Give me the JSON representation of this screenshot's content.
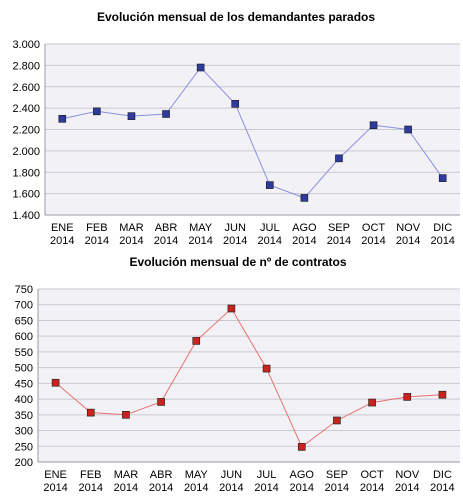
{
  "chart_data": [
    {
      "type": "line",
      "title": "Evolución mensual de los demandantes parados",
      "categories": [
        "ENE 2014",
        "FEB 2014",
        "MAR 2014",
        "ABR 2014",
        "MAY 2014",
        "JUN 2014",
        "JUL 2014",
        "AGO 2014",
        "SEP 2014",
        "OCT 2014",
        "NOV 2014",
        "DIC 2014"
      ],
      "category_lines": [
        [
          "ENE",
          "2014"
        ],
        [
          "FEB",
          "2014"
        ],
        [
          "MAR",
          "2014"
        ],
        [
          "ABR",
          "2014"
        ],
        [
          "MAY",
          "2014"
        ],
        [
          "JUN",
          "2014"
        ],
        [
          "JUL",
          "2014"
        ],
        [
          "AGO",
          "2014"
        ],
        [
          "SEP",
          "2014"
        ],
        [
          "OCT",
          "2014"
        ],
        [
          "NOV",
          "2014"
        ],
        [
          "DIC",
          "2014"
        ]
      ],
      "series": [
        {
          "values": [
            2300,
            2370,
            2325,
            2345,
            2780,
            2440,
            1680,
            1560,
            1930,
            2240,
            2200,
            1745
          ],
          "color": "#2e3a9e",
          "line_color": "#8a90e0"
        }
      ],
      "ylim": [
        1400,
        3000
      ],
      "yticks": [
        1400,
        1600,
        1800,
        2000,
        2200,
        2400,
        2600,
        2800,
        3000
      ],
      "ytick_labels": [
        "1.400",
        "1.600",
        "1.800",
        "2.000",
        "2.200",
        "2.400",
        "2.600",
        "2.800",
        "3.000"
      ],
      "grid": true,
      "xlabel": "",
      "ylabel": ""
    },
    {
      "type": "line",
      "title": "Evolución mensual de nº de contratos",
      "categories": [
        "ENE 2014",
        "FEB 2014",
        "MAR 2014",
        "ABR 2014",
        "MAY 2014",
        "JUN 2014",
        "JUL 2014",
        "AGO 2014",
        "SEP 2014",
        "OCT 2014",
        "NOV 2014",
        "DIC 2014"
      ],
      "category_lines": [
        [
          "ENE",
          "2014"
        ],
        [
          "FEB",
          "2014"
        ],
        [
          "MAR",
          "2014"
        ],
        [
          "ABR",
          "2014"
        ],
        [
          "MAY",
          "2014"
        ],
        [
          "JUN",
          "2014"
        ],
        [
          "JUL",
          "2014"
        ],
        [
          "AGO",
          "2014"
        ],
        [
          "SEP",
          "2014"
        ],
        [
          "OCT",
          "2014"
        ],
        [
          "NOV",
          "2014"
        ],
        [
          "DIC",
          "2014"
        ]
      ],
      "series": [
        {
          "values": [
            452,
            357,
            350,
            391,
            585,
            688,
            497,
            248,
            332,
            389,
            407,
            414
          ],
          "color": "#c8231e",
          "line_color": "#e87070"
        }
      ],
      "ylim": [
        200,
        750
      ],
      "yticks": [
        200,
        250,
        300,
        350,
        400,
        450,
        500,
        550,
        600,
        650,
        700,
        750
      ],
      "ytick_labels": [
        "200",
        "250",
        "300",
        "350",
        "400",
        "450",
        "500",
        "550",
        "600",
        "650",
        "700",
        "750"
      ],
      "grid": true,
      "xlabel": "",
      "ylabel": ""
    }
  ]
}
